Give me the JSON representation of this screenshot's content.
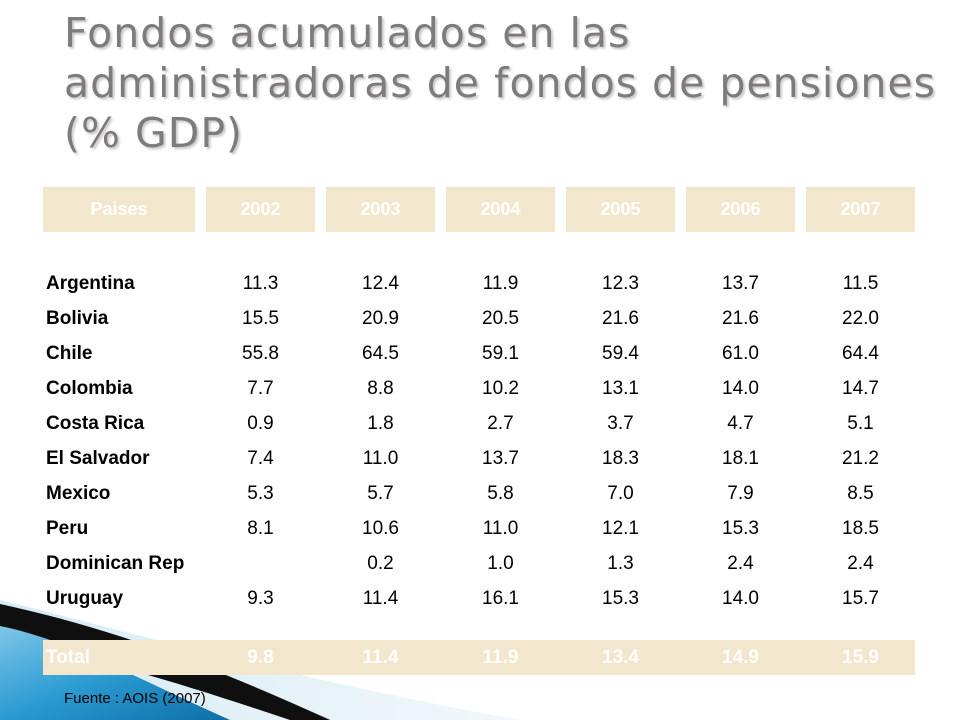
{
  "slide": {
    "title": "Fondos acumulados en las administradoras de fondos de pensiones (% GDP)",
    "source": "Fuente : AOIS (2007)"
  },
  "table": {
    "headers": [
      "Paises",
      "2002",
      "2003",
      "2004",
      "2005",
      "2006",
      "2007"
    ],
    "rows": [
      {
        "country": "Argentina",
        "values": [
          "11.3",
          "12.4",
          "11.9",
          "12.3",
          "13.7",
          "11.5"
        ]
      },
      {
        "country": "Bolivia",
        "values": [
          "15.5",
          "20.9",
          "20.5",
          "21.6",
          "21.6",
          "22.0"
        ]
      },
      {
        "country": "Chile",
        "values": [
          "55.8",
          "64.5",
          "59.1",
          "59.4",
          "61.0",
          "64.4"
        ]
      },
      {
        "country": "Colombia",
        "values": [
          "7.7",
          "8.8",
          "10.2",
          "13.1",
          "14.0",
          "14.7"
        ]
      },
      {
        "country": "Costa Rica",
        "values": [
          "0.9",
          "1.8",
          "2.7",
          "3.7",
          "4.7",
          "5.1"
        ]
      },
      {
        "country": "El Salvador",
        "values": [
          "7.4",
          "11.0",
          "13.7",
          "18.3",
          "18.1",
          "21.2"
        ]
      },
      {
        "country": "Mexico",
        "values": [
          "5.3",
          "5.7",
          "5.8",
          "7.0",
          "7.9",
          "8.5"
        ]
      },
      {
        "country": "Peru",
        "values": [
          "8.1",
          "10.6",
          "11.0",
          "12.1",
          "15.3",
          "18.5"
        ]
      },
      {
        "country": "Dominican Rep",
        "values": [
          "",
          "0.2",
          "1.0",
          "1.3",
          "2.4",
          "2.4"
        ]
      },
      {
        "country": "Uruguay",
        "values": [
          "9.3",
          "11.4",
          "16.1",
          "15.3",
          "14.0",
          "15.7"
        ]
      }
    ],
    "total": {
      "label": "Total",
      "values": [
        "9.8",
        "11.4",
        "11.9",
        "13.4",
        "14.9",
        "15.9"
      ]
    }
  },
  "colors": {
    "header_fill": "#f2e7cd",
    "title_text": "#7d7b7b",
    "accent_blue": "#1e8fc6"
  }
}
